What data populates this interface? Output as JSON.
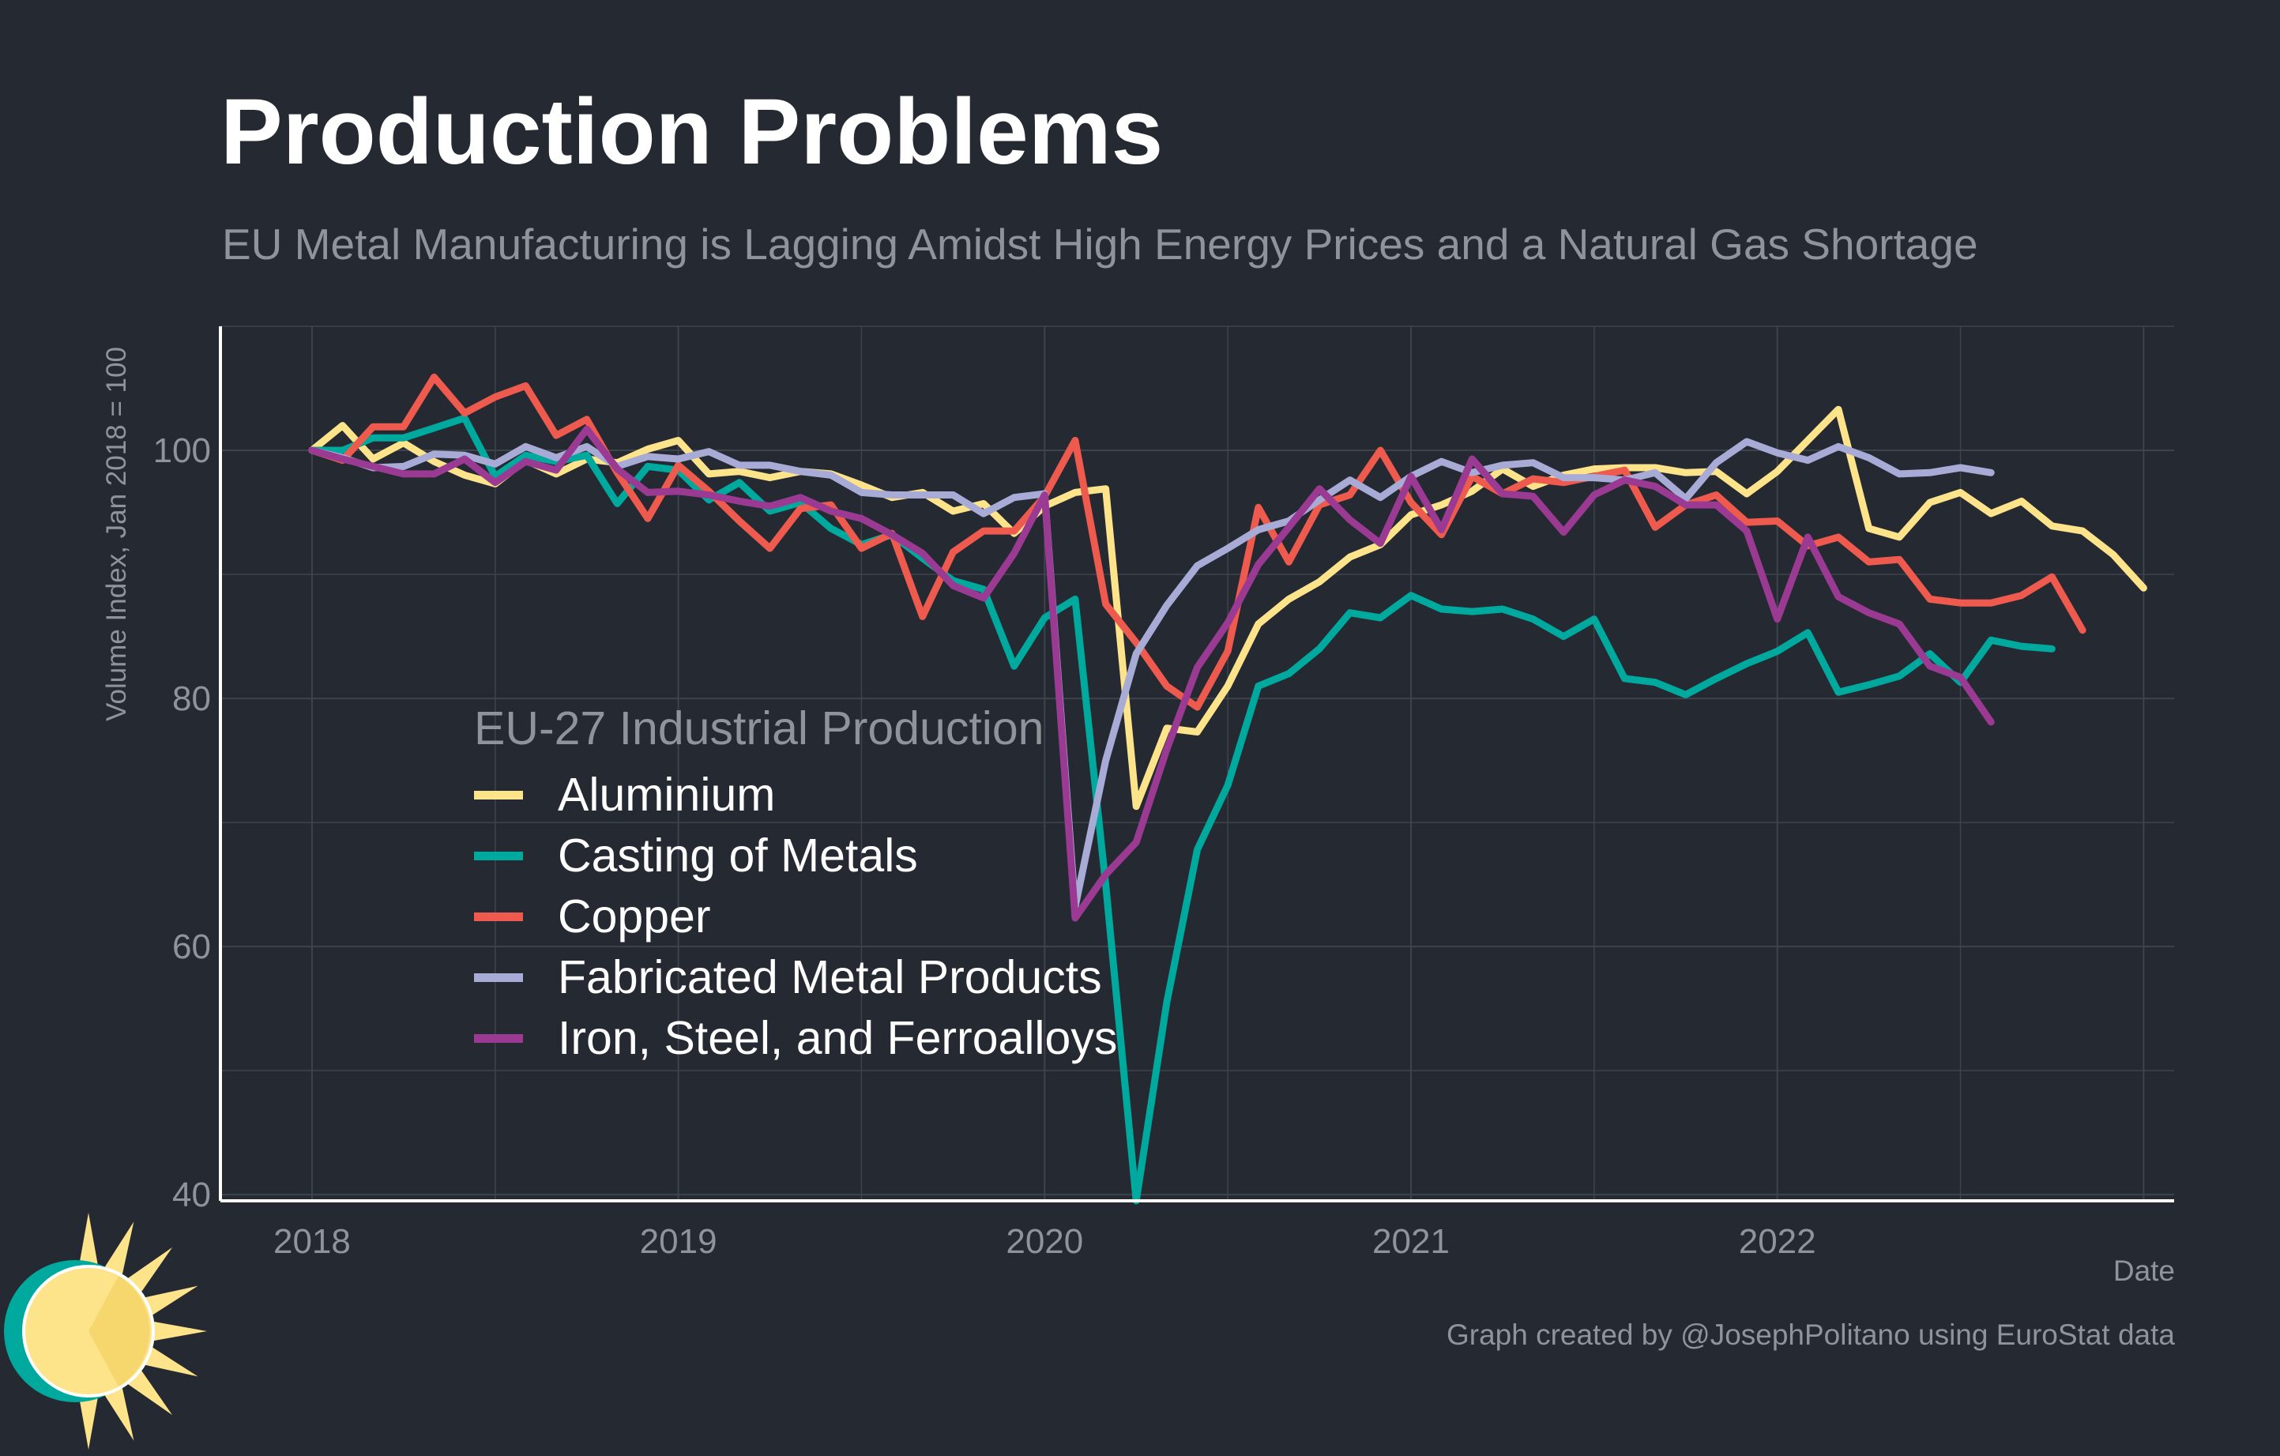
{
  "title": "Production Problems",
  "subtitle": "EU Metal Manufacturing is Lagging Amidst High Energy Prices and a Natural Gas Shortage",
  "caption": "Graph created by @JosephPolitano using EuroStat data",
  "legend_title": "EU-27 Industrial Production",
  "colors": {
    "background": "#252932",
    "grid": "#3e434c",
    "axis": "#ffffff",
    "text_muted": "#8f939a",
    "Aluminium": "#fde38a",
    "Casting of Metals": "#00a99d",
    "Copper": "#ee5a4d",
    "Fabricated Metal Products": "#a9abd7",
    "Iron, Steel, and Ferroalloys": "#9a3a93"
  },
  "chart_data": {
    "type": "line",
    "title": "Production Problems",
    "subtitle": "EU Metal Manufacturing is Lagging Amidst High Energy Prices and a Natural Gas Shortage",
    "xlabel": "Date",
    "ylabel": "Volume Index, Jan 2018 = 100",
    "x_ticks": [
      "2018",
      "2019",
      "2020",
      "2021",
      "2022"
    ],
    "y_ticks": [
      40,
      60,
      80,
      100
    ],
    "ylim": [
      39.5,
      110
    ],
    "xlim": [
      "2017-10",
      "2023-02"
    ],
    "x_start": "2018-01",
    "x_frequency": "monthly",
    "grid": true,
    "legend_position": "center-left",
    "series": [
      {
        "name": "Aluminium",
        "color": "#fde38a",
        "values": [
          100,
          102,
          99.3,
          100.6,
          99.1,
          98,
          97.3,
          99.2,
          98.1,
          99.3,
          99,
          100.1,
          100.8,
          98.1,
          98.3,
          97.8,
          98.3,
          98.1,
          97.2,
          96.2,
          96.6,
          95.1,
          95.7,
          93.3,
          95.5,
          96.6,
          96.9,
          71.3,
          77.6,
          77.3,
          81,
          86,
          88,
          89.4,
          91.4,
          92.4,
          94.8,
          95.6,
          96.7,
          98.5,
          97.1,
          98,
          98.5,
          98.6,
          98.6,
          98.2,
          98.3,
          96.5,
          98.3,
          100.8,
          103.3,
          93.7,
          93,
          95.8,
          96.6,
          94.9,
          95.9,
          93.9,
          93.5,
          91.6,
          88.9
        ]
      },
      {
        "name": "Casting of Metals",
        "color": "#00a99d",
        "values": [
          100,
          100,
          101,
          101,
          101.8,
          102.6,
          97.9,
          99.6,
          99.1,
          99.6,
          95.7,
          98.7,
          98.4,
          96,
          97.4,
          95.1,
          95.8,
          93.7,
          92.4,
          93.2,
          91.3,
          89.5,
          88.8,
          82.6,
          86.5,
          88,
          65,
          39.5,
          55.5,
          67.8,
          73,
          81,
          82,
          84,
          86.9,
          86.5,
          88.3,
          87.2,
          87,
          87.2,
          86.4,
          85,
          86.4,
          81.6,
          81.3,
          80.3,
          81.6,
          82.8,
          83.8,
          85.3,
          80.5,
          81.1,
          81.8,
          83.6,
          81.3,
          84.7,
          84.2,
          84
        ]
      },
      {
        "name": "Copper",
        "color": "#ee5a4d",
        "values": [
          100,
          99.2,
          101.9,
          101.9,
          105.9,
          103,
          104.3,
          105.2,
          101.2,
          102.5,
          98.2,
          94.5,
          98.8,
          96.7,
          94.3,
          92.1,
          95.3,
          95.6,
          92.1,
          93.3,
          86.6,
          91.8,
          93.5,
          93.5,
          96.3,
          100.8,
          87.6,
          84.5,
          81,
          79.3,
          83.8,
          95.4,
          91,
          95.6,
          96.4,
          100,
          95.8,
          93.2,
          97.9,
          96.5,
          97.7,
          97.4,
          97.9,
          98.4,
          93.8,
          95.6,
          96.4,
          94.2,
          94.3,
          92.3,
          93,
          91,
          91.2,
          88,
          87.7,
          87.7,
          88.3,
          89.8,
          85.5
        ]
      },
      {
        "name": "Fabricated Metal Products",
        "color": "#a9abd7",
        "values": [
          100,
          99.4,
          98.6,
          98.7,
          99.7,
          99.6,
          98.9,
          100.3,
          99.4,
          100.3,
          98.7,
          99.5,
          99.3,
          99.9,
          98.8,
          98.8,
          98.3,
          98,
          96.6,
          96.4,
          96.4,
          96.4,
          94.9,
          96.2,
          96.5,
          63.2,
          75,
          83.6,
          87.5,
          90.7,
          92.1,
          93.6,
          94.3,
          96,
          97.6,
          96.2,
          97.9,
          99.1,
          98.2,
          98.8,
          99,
          97.8,
          97.8,
          97.6,
          98.2,
          96.1,
          99,
          100.7,
          99.8,
          99.2,
          100.3,
          99.4,
          98.1,
          98.2,
          98.6,
          98.2
        ]
      },
      {
        "name": "Iron, Steel, and Ferroalloys",
        "color": "#9a3a93",
        "values": [
          100,
          99.3,
          98.7,
          98.1,
          98.1,
          99.3,
          97.4,
          99.1,
          98.4,
          101.7,
          98.5,
          96.6,
          96.7,
          96.4,
          95.9,
          95.5,
          96.2,
          95.1,
          94.5,
          93.2,
          91.7,
          89.1,
          88.1,
          91.7,
          96.4,
          62.3,
          65.8,
          68.4,
          75.9,
          82.5,
          86.1,
          90.8,
          93.8,
          96.9,
          94.4,
          92.5,
          97.9,
          93.6,
          99.3,
          96.5,
          96.3,
          93.4,
          96.4,
          97.6,
          97.1,
          95.6,
          95.6,
          93.5,
          86.4,
          93,
          88.2,
          86.9,
          86,
          82.6,
          81.7,
          78.1
        ]
      }
    ]
  }
}
